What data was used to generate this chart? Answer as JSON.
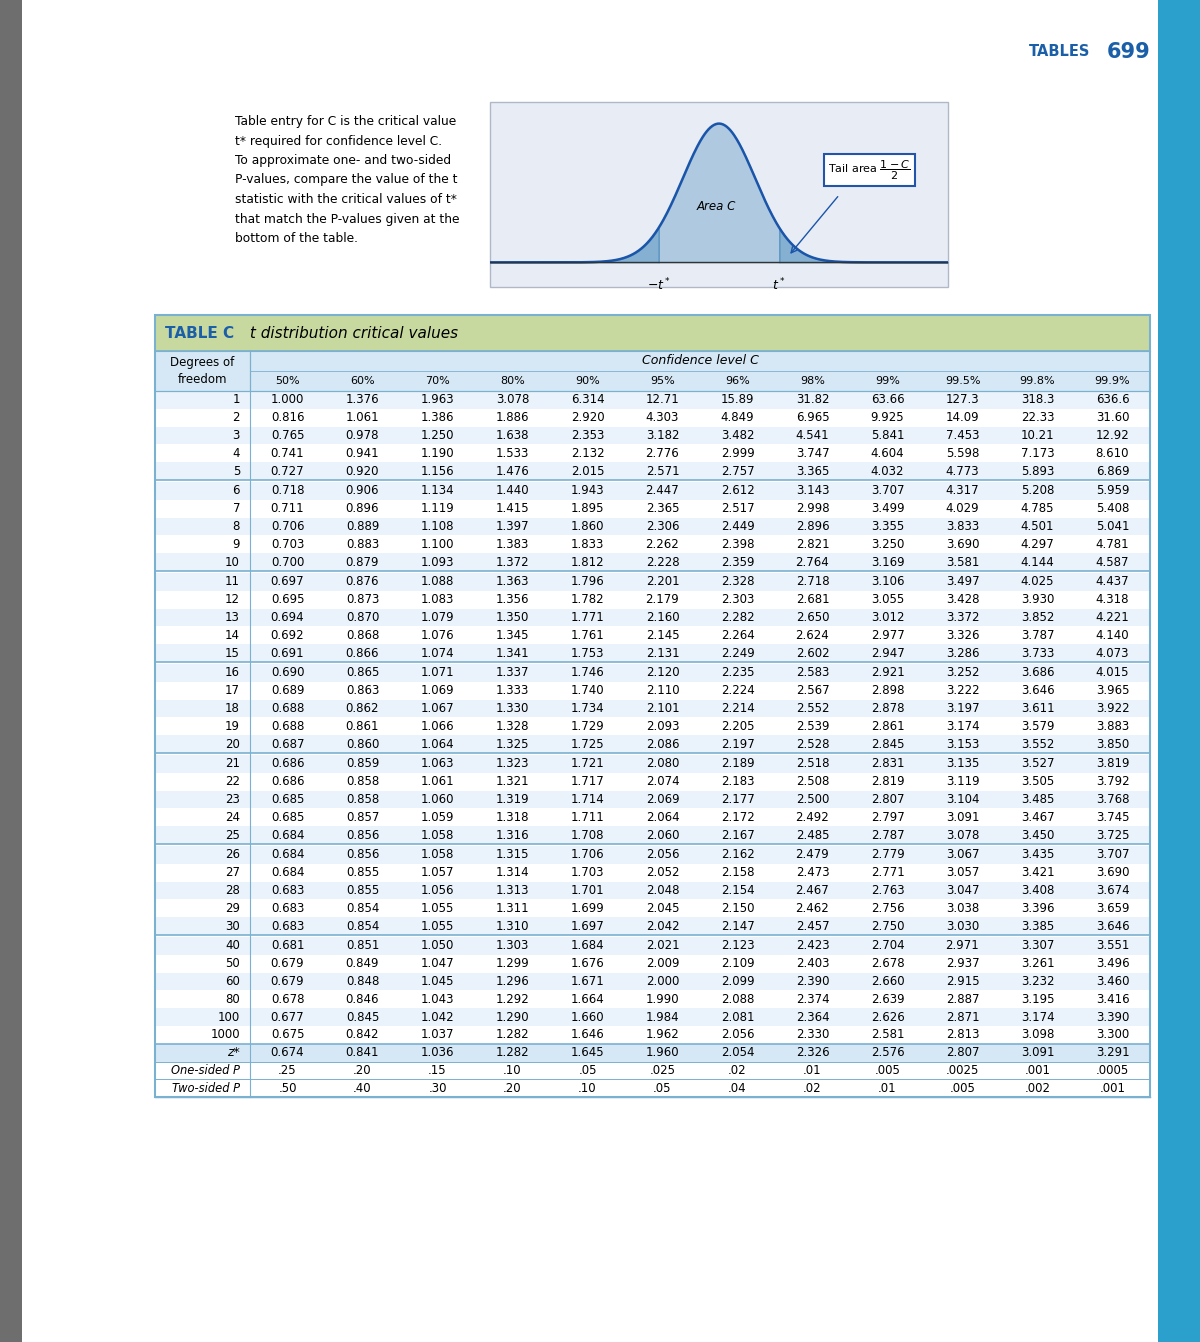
{
  "page_header_text": "TABLES",
  "page_number": "699",
  "header_color": "#1a5fa8",
  "sidebar_color": "#2ca0cc",
  "left_bar_color": "#6e6e6e",
  "table_title_bold": "TABLE C",
  "table_title_italic": " t distribution critical values",
  "table_header_bg": "#c8d9a0",
  "table_subheader_bg": "#d6e8f5",
  "table_row_bg_light": "#eaf3fb",
  "table_row_bg_white": "#ffffff",
  "table_border_color": "#7ab0d0",
  "confidence_levels": [
    "50%",
    "60%",
    "70%",
    "80%",
    "90%",
    "95%",
    "96%",
    "98%",
    "99%",
    "99.5%",
    "99.8%",
    "99.9%"
  ],
  "col_header_dof": "Degrees of\nfreedom",
  "col_header_confidence": "Confidence level C",
  "description_text": "Table entry for C is the critical value\nt* required for confidence level C.\nTo approximate one- and two-sided\nP-values, compare the value of the t\nstatistic with the critical values of t*\nthat match the P-values given at the\nbottom of the table.",
  "bottom_rows": [
    {
      "label": "One-sided P",
      "values": [
        ".25",
        ".20",
        ".15",
        ".10",
        ".05",
        ".025",
        ".02",
        ".01",
        ".005",
        ".0025",
        ".001",
        ".0005"
      ]
    },
    {
      "label": "Two-sided P",
      "values": [
        ".50",
        ".40",
        ".30",
        ".20",
        ".10",
        ".05",
        ".04",
        ".02",
        ".01",
        ".005",
        ".002",
        ".001"
      ]
    }
  ],
  "zstar_row": {
    "label": "z*",
    "values": [
      "0.674",
      "0.841",
      "1.036",
      "1.282",
      "1.645",
      "1.960",
      "2.054",
      "2.326",
      "2.576",
      "2.807",
      "3.091",
      "3.291"
    ]
  },
  "table_data": [
    {
      "df": "1",
      "v": [
        "1.000",
        "1.376",
        "1.963",
        "3.078",
        "6.314",
        "12.71",
        "15.89",
        "31.82",
        "63.66",
        "127.3",
        "318.3",
        "636.6"
      ]
    },
    {
      "df": "2",
      "v": [
        "0.816",
        "1.061",
        "1.386",
        "1.886",
        "2.920",
        "4.303",
        "4.849",
        "6.965",
        "9.925",
        "14.09",
        "22.33",
        "31.60"
      ]
    },
    {
      "df": "3",
      "v": [
        "0.765",
        "0.978",
        "1.250",
        "1.638",
        "2.353",
        "3.182",
        "3.482",
        "4.541",
        "5.841",
        "7.453",
        "10.21",
        "12.92"
      ]
    },
    {
      "df": "4",
      "v": [
        "0.741",
        "0.941",
        "1.190",
        "1.533",
        "2.132",
        "2.776",
        "2.999",
        "3.747",
        "4.604",
        "5.598",
        "7.173",
        "8.610"
      ]
    },
    {
      "df": "5",
      "v": [
        "0.727",
        "0.920",
        "1.156",
        "1.476",
        "2.015",
        "2.571",
        "2.757",
        "3.365",
        "4.032",
        "4.773",
        "5.893",
        "6.869"
      ]
    },
    {
      "df": "6",
      "v": [
        "0.718",
        "0.906",
        "1.134",
        "1.440",
        "1.943",
        "2.447",
        "2.612",
        "3.143",
        "3.707",
        "4.317",
        "5.208",
        "5.959"
      ]
    },
    {
      "df": "7",
      "v": [
        "0.711",
        "0.896",
        "1.119",
        "1.415",
        "1.895",
        "2.365",
        "2.517",
        "2.998",
        "3.499",
        "4.029",
        "4.785",
        "5.408"
      ]
    },
    {
      "df": "8",
      "v": [
        "0.706",
        "0.889",
        "1.108",
        "1.397",
        "1.860",
        "2.306",
        "2.449",
        "2.896",
        "3.355",
        "3.833",
        "4.501",
        "5.041"
      ]
    },
    {
      "df": "9",
      "v": [
        "0.703",
        "0.883",
        "1.100",
        "1.383",
        "1.833",
        "2.262",
        "2.398",
        "2.821",
        "3.250",
        "3.690",
        "4.297",
        "4.781"
      ]
    },
    {
      "df": "10",
      "v": [
        "0.700",
        "0.879",
        "1.093",
        "1.372",
        "1.812",
        "2.228",
        "2.359",
        "2.764",
        "3.169",
        "3.581",
        "4.144",
        "4.587"
      ]
    },
    {
      "df": "11",
      "v": [
        "0.697",
        "0.876",
        "1.088",
        "1.363",
        "1.796",
        "2.201",
        "2.328",
        "2.718",
        "3.106",
        "3.497",
        "4.025",
        "4.437"
      ]
    },
    {
      "df": "12",
      "v": [
        "0.695",
        "0.873",
        "1.083",
        "1.356",
        "1.782",
        "2.179",
        "2.303",
        "2.681",
        "3.055",
        "3.428",
        "3.930",
        "4.318"
      ]
    },
    {
      "df": "13",
      "v": [
        "0.694",
        "0.870",
        "1.079",
        "1.350",
        "1.771",
        "2.160",
        "2.282",
        "2.650",
        "3.012",
        "3.372",
        "3.852",
        "4.221"
      ]
    },
    {
      "df": "14",
      "v": [
        "0.692",
        "0.868",
        "1.076",
        "1.345",
        "1.761",
        "2.145",
        "2.264",
        "2.624",
        "2.977",
        "3.326",
        "3.787",
        "4.140"
      ]
    },
    {
      "df": "15",
      "v": [
        "0.691",
        "0.866",
        "1.074",
        "1.341",
        "1.753",
        "2.131",
        "2.249",
        "2.602",
        "2.947",
        "3.286",
        "3.733",
        "4.073"
      ]
    },
    {
      "df": "16",
      "v": [
        "0.690",
        "0.865",
        "1.071",
        "1.337",
        "1.746",
        "2.120",
        "2.235",
        "2.583",
        "2.921",
        "3.252",
        "3.686",
        "4.015"
      ]
    },
    {
      "df": "17",
      "v": [
        "0.689",
        "0.863",
        "1.069",
        "1.333",
        "1.740",
        "2.110",
        "2.224",
        "2.567",
        "2.898",
        "3.222",
        "3.646",
        "3.965"
      ]
    },
    {
      "df": "18",
      "v": [
        "0.688",
        "0.862",
        "1.067",
        "1.330",
        "1.734",
        "2.101",
        "2.214",
        "2.552",
        "2.878",
        "3.197",
        "3.611",
        "3.922"
      ]
    },
    {
      "df": "19",
      "v": [
        "0.688",
        "0.861",
        "1.066",
        "1.328",
        "1.729",
        "2.093",
        "2.205",
        "2.539",
        "2.861",
        "3.174",
        "3.579",
        "3.883"
      ]
    },
    {
      "df": "20",
      "v": [
        "0.687",
        "0.860",
        "1.064",
        "1.325",
        "1.725",
        "2.086",
        "2.197",
        "2.528",
        "2.845",
        "3.153",
        "3.552",
        "3.850"
      ]
    },
    {
      "df": "21",
      "v": [
        "0.686",
        "0.859",
        "1.063",
        "1.323",
        "1.721",
        "2.080",
        "2.189",
        "2.518",
        "2.831",
        "3.135",
        "3.527",
        "3.819"
      ]
    },
    {
      "df": "22",
      "v": [
        "0.686",
        "0.858",
        "1.061",
        "1.321",
        "1.717",
        "2.074",
        "2.183",
        "2.508",
        "2.819",
        "3.119",
        "3.505",
        "3.792"
      ]
    },
    {
      "df": "23",
      "v": [
        "0.685",
        "0.858",
        "1.060",
        "1.319",
        "1.714",
        "2.069",
        "2.177",
        "2.500",
        "2.807",
        "3.104",
        "3.485",
        "3.768"
      ]
    },
    {
      "df": "24",
      "v": [
        "0.685",
        "0.857",
        "1.059",
        "1.318",
        "1.711",
        "2.064",
        "2.172",
        "2.492",
        "2.797",
        "3.091",
        "3.467",
        "3.745"
      ]
    },
    {
      "df": "25",
      "v": [
        "0.684",
        "0.856",
        "1.058",
        "1.316",
        "1.708",
        "2.060",
        "2.167",
        "2.485",
        "2.787",
        "3.078",
        "3.450",
        "3.725"
      ]
    },
    {
      "df": "26",
      "v": [
        "0.684",
        "0.856",
        "1.058",
        "1.315",
        "1.706",
        "2.056",
        "2.162",
        "2.479",
        "2.779",
        "3.067",
        "3.435",
        "3.707"
      ]
    },
    {
      "df": "27",
      "v": [
        "0.684",
        "0.855",
        "1.057",
        "1.314",
        "1.703",
        "2.052",
        "2.158",
        "2.473",
        "2.771",
        "3.057",
        "3.421",
        "3.690"
      ]
    },
    {
      "df": "28",
      "v": [
        "0.683",
        "0.855",
        "1.056",
        "1.313",
        "1.701",
        "2.048",
        "2.154",
        "2.467",
        "2.763",
        "3.047",
        "3.408",
        "3.674"
      ]
    },
    {
      "df": "29",
      "v": [
        "0.683",
        "0.854",
        "1.055",
        "1.311",
        "1.699",
        "2.045",
        "2.150",
        "2.462",
        "2.756",
        "3.038",
        "3.396",
        "3.659"
      ]
    },
    {
      "df": "30",
      "v": [
        "0.683",
        "0.854",
        "1.055",
        "1.310",
        "1.697",
        "2.042",
        "2.147",
        "2.457",
        "2.750",
        "3.030",
        "3.385",
        "3.646"
      ]
    },
    {
      "df": "40",
      "v": [
        "0.681",
        "0.851",
        "1.050",
        "1.303",
        "1.684",
        "2.021",
        "2.123",
        "2.423",
        "2.704",
        "2.971",
        "3.307",
        "3.551"
      ]
    },
    {
      "df": "50",
      "v": [
        "0.679",
        "0.849",
        "1.047",
        "1.299",
        "1.676",
        "2.009",
        "2.109",
        "2.403",
        "2.678",
        "2.937",
        "3.261",
        "3.496"
      ]
    },
    {
      "df": "60",
      "v": [
        "0.679",
        "0.848",
        "1.045",
        "1.296",
        "1.671",
        "2.000",
        "2.099",
        "2.390",
        "2.660",
        "2.915",
        "3.232",
        "3.460"
      ]
    },
    {
      "df": "80",
      "v": [
        "0.678",
        "0.846",
        "1.043",
        "1.292",
        "1.664",
        "1.990",
        "2.088",
        "2.374",
        "2.639",
        "2.887",
        "3.195",
        "3.416"
      ]
    },
    {
      "df": "100",
      "v": [
        "0.677",
        "0.845",
        "1.042",
        "1.290",
        "1.660",
        "1.984",
        "2.081",
        "2.364",
        "2.626",
        "2.871",
        "3.174",
        "3.390"
      ]
    },
    {
      "df": "1000",
      "v": [
        "0.675",
        "0.842",
        "1.037",
        "1.282",
        "1.646",
        "1.962",
        "2.056",
        "2.330",
        "2.581",
        "2.813",
        "3.098",
        "3.300"
      ]
    }
  ]
}
